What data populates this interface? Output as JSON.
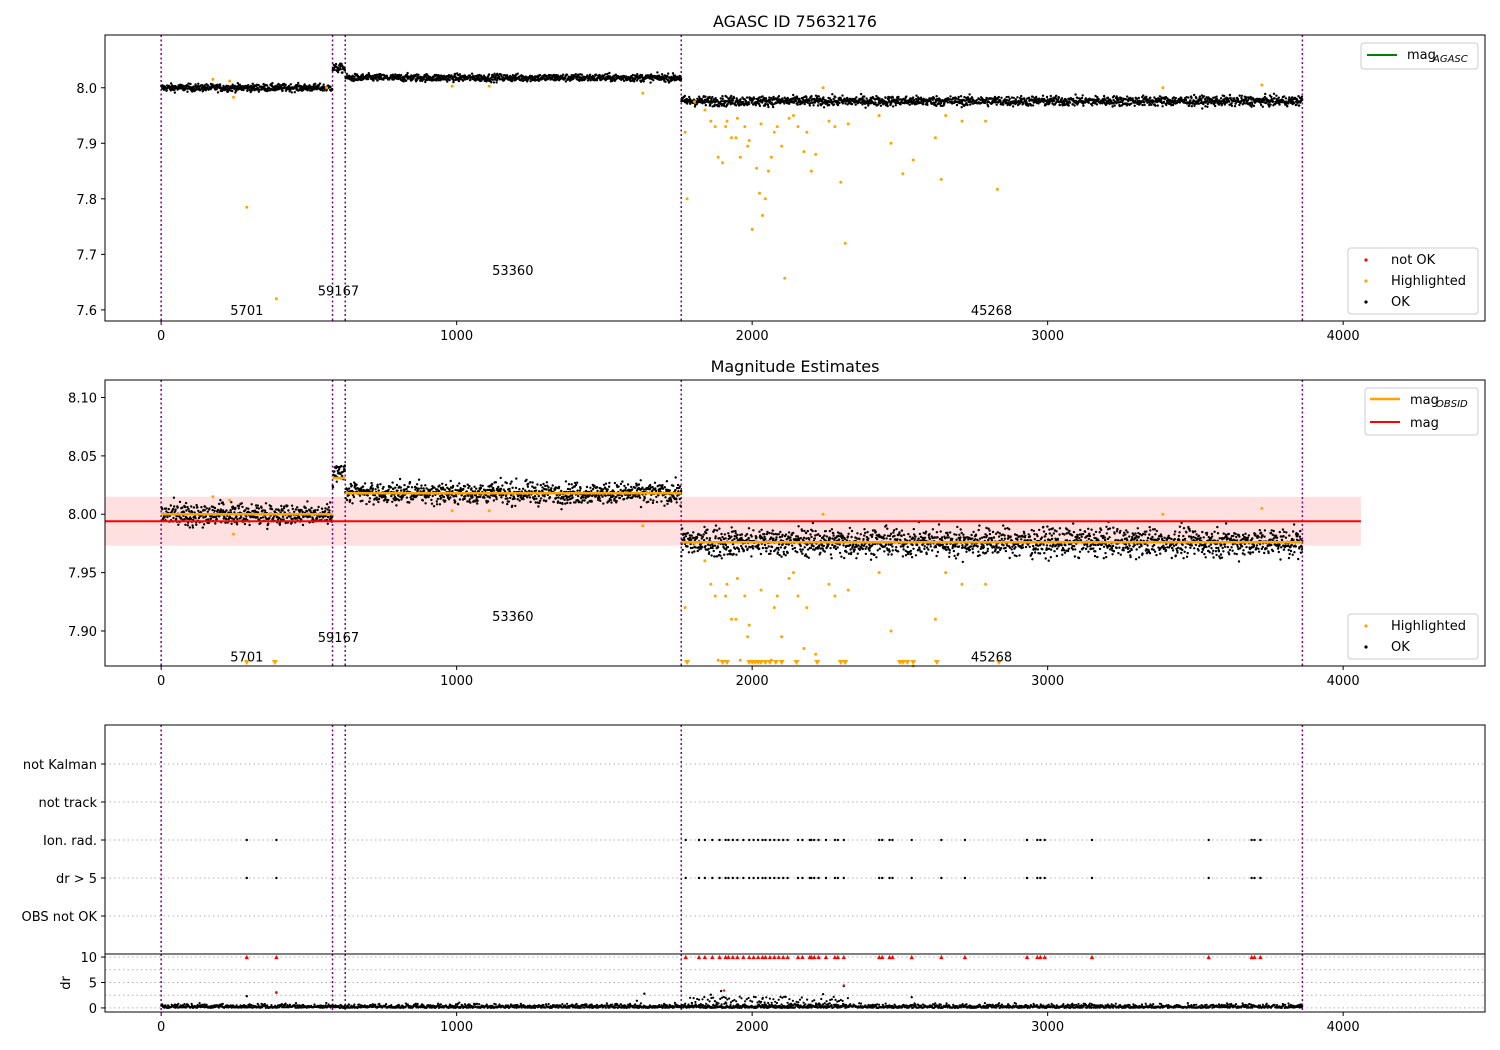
{
  "chart_data": [
    {
      "type": "scatter",
      "title": "AGASC ID 75632176",
      "xlim": [
        -190,
        4480
      ],
      "ylim": [
        7.58,
        8.095
      ],
      "x_ticks": [
        0,
        1000,
        2000,
        3000,
        4000
      ],
      "y_ticks": [
        7.6,
        7.7,
        7.8,
        7.9,
        8.0
      ],
      "y_tick_labels": [
        "7.6",
        "7.7",
        "7.8",
        "7.9",
        "8.0"
      ],
      "obs_boundaries": [
        0,
        580,
        623,
        1760,
        3862
      ],
      "obs_labels": [
        {
          "text": "5701",
          "x": 290,
          "y": 7.6
        },
        {
          "text": "59167",
          "x": 600,
          "y": 7.635
        },
        {
          "text": "53360",
          "x": 1190,
          "y": 7.672
        },
        {
          "text": "45268",
          "x": 2810,
          "y": 7.6
        }
      ],
      "segments": [
        {
          "x0": 0,
          "x1": 580,
          "level": 8.0,
          "scatter": 0.006,
          "gap_above": 0.009
        },
        {
          "x0": 580,
          "x1": 623,
          "level": 8.035,
          "scatter": 0.007,
          "gap_above": 0.009
        },
        {
          "x0": 623,
          "x1": 1760,
          "level": 8.018,
          "scatter": 0.006,
          "gap_above": 0.009
        },
        {
          "x0": 1760,
          "x1": 3862,
          "level": 7.976,
          "scatter": 0.008,
          "gap_above": 0.009
        }
      ],
      "highlighted_points": [
        [
          175,
          8.015
        ],
        [
          232,
          8.012
        ],
        [
          245,
          7.983
        ],
        [
          290,
          7.785
        ],
        [
          390,
          7.62
        ],
        [
          560,
          8.0
        ],
        [
          985,
          8.003
        ],
        [
          1110,
          8.003
        ],
        [
          1630,
          7.99
        ],
        [
          1773,
          7.92
        ],
        [
          1780,
          7.8
        ],
        [
          1805,
          7.975
        ],
        [
          1840,
          7.96
        ],
        [
          1860,
          7.94
        ],
        [
          1875,
          7.93
        ],
        [
          1885,
          7.875
        ],
        [
          1900,
          7.865
        ],
        [
          1910,
          7.93
        ],
        [
          1915,
          7.94
        ],
        [
          1930,
          7.91
        ],
        [
          1945,
          7.91
        ],
        [
          1950,
          7.945
        ],
        [
          1960,
          7.875
        ],
        [
          1975,
          7.93
        ],
        [
          1985,
          7.895
        ],
        [
          1990,
          7.905
        ],
        [
          2000,
          7.745
        ],
        [
          2015,
          7.855
        ],
        [
          2025,
          7.81
        ],
        [
          2030,
          7.935
        ],
        [
          2035,
          7.77
        ],
        [
          2045,
          7.8
        ],
        [
          2055,
          7.85
        ],
        [
          2065,
          7.875
        ],
        [
          2075,
          7.92
        ],
        [
          2085,
          7.93
        ],
        [
          2100,
          7.895
        ],
        [
          2110,
          7.657
        ],
        [
          2125,
          7.945
        ],
        [
          2140,
          7.95
        ],
        [
          2155,
          7.93
        ],
        [
          2175,
          7.885
        ],
        [
          2185,
          7.92
        ],
        [
          2200,
          7.85
        ],
        [
          2215,
          7.88
        ],
        [
          2240,
          8.0
        ],
        [
          2260,
          7.94
        ],
        [
          2280,
          7.93
        ],
        [
          2300,
          7.83
        ],
        [
          2315,
          7.72
        ],
        [
          2325,
          7.935
        ],
        [
          2430,
          7.95
        ],
        [
          2470,
          7.9
        ],
        [
          2510,
          7.845
        ],
        [
          2545,
          7.87
        ],
        [
          2620,
          7.91
        ],
        [
          2640,
          7.835
        ],
        [
          2655,
          7.95
        ],
        [
          2710,
          7.94
        ],
        [
          2790,
          7.94
        ],
        [
          2830,
          7.817
        ],
        [
          3390,
          8.0
        ],
        [
          3725,
          8.005
        ]
      ],
      "legends": [
        {
          "label": "mag",
          "subscript": "AGASC",
          "color": "#008000",
          "marker": "line"
        },
        {
          "label": "not OK",
          "color": "#ff0000",
          "marker": "dot"
        },
        {
          "label": "Highlighted",
          "color": "#ffa500",
          "marker": "dot"
        },
        {
          "label": "OK",
          "color": "#000000",
          "marker": "dot"
        }
      ]
    },
    {
      "type": "scatter",
      "title": "Magnitude Estimates",
      "xlim": [
        -190,
        4480
      ],
      "ylim": [
        7.87,
        8.115
      ],
      "x_ticks": [
        0,
        1000,
        2000,
        3000,
        4000
      ],
      "y_ticks": [
        7.9,
        7.95,
        8.0,
        8.05,
        8.1
      ],
      "y_tick_labels": [
        "7.90",
        "7.95",
        "8.00",
        "8.05",
        "8.10"
      ],
      "mag": 7.994,
      "mag_band": [
        7.973,
        8.015
      ],
      "band_x": [
        -190,
        4060
      ],
      "mag_obsid": [
        {
          "x0": 0,
          "x1": 580,
          "value": 8.0
        },
        {
          "x0": 580,
          "x1": 623,
          "value": 8.031
        },
        {
          "x0": 623,
          "x1": 1760,
          "value": 8.018
        },
        {
          "x0": 1760,
          "x1": 3862,
          "value": 7.976
        }
      ],
      "obs_labels": [
        {
          "text": "5701",
          "x": 290,
          "y": 7.878
        },
        {
          "text": "59167",
          "x": 600,
          "y": 7.895
        },
        {
          "text": "53360",
          "x": 1190,
          "y": 7.913
        },
        {
          "text": "45268",
          "x": 2810,
          "y": 7.878
        }
      ],
      "clipped_low_x": [
        290,
        385,
        1780,
        1900,
        1915,
        1990,
        2000,
        2010,
        2020,
        2030,
        2045,
        2060,
        2080,
        2100,
        2150,
        2220,
        2300,
        2315,
        2500,
        2510,
        2525,
        2545,
        2625,
        2835
      ],
      "legends": [
        {
          "label": "mag",
          "subscript": "OBSID",
          "color": "#ffa500",
          "marker": "line"
        },
        {
          "label": "mag",
          "color": "#ff0000",
          "marker": "line"
        },
        {
          "label": "Highlighted",
          "color": "#ffa500",
          "marker": "dot"
        },
        {
          "label": "OK",
          "color": "#000000",
          "marker": "dot"
        }
      ]
    },
    {
      "type": "scatter",
      "title": "",
      "xlim": [
        -190,
        4480
      ],
      "categories": [
        "not Kalman",
        "not track",
        "Ion. rad.",
        "dr > 5",
        "OBS not OK"
      ],
      "flag_x": [
        290,
        390,
        1775,
        1820,
        1840,
        1865,
        1890,
        1910,
        1920,
        1935,
        1950,
        1970,
        1990,
        2005,
        2020,
        2035,
        2045,
        2060,
        2075,
        2090,
        2105,
        2120,
        2155,
        2170,
        2195,
        2200,
        2210,
        2225,
        2250,
        2280,
        2290,
        2310,
        2430,
        2440,
        2465,
        2475,
        2540,
        2640,
        2720,
        2930,
        2965,
        2975,
        2990,
        3150,
        3545,
        3690,
        3700,
        3720
      ]
    },
    {
      "type": "scatter",
      "title": "",
      "xlim": [
        -190,
        4480
      ],
      "ylim": [
        -0.8,
        10.6
      ],
      "y_ticks": [
        0,
        5,
        10
      ],
      "y_tick_labels": [
        "0",
        "5",
        "10"
      ],
      "ylabel": "dr",
      "x_tick_labels": [
        "0",
        "1000",
        "2000",
        "3000",
        "4000"
      ],
      "dr_outliers": [
        [
          290,
          2.3
        ],
        [
          390,
          3.0
        ],
        [
          1610,
          1.4
        ],
        [
          1635,
          2.8
        ],
        [
          1860,
          2.6
        ],
        [
          1895,
          3.3
        ],
        [
          1910,
          2.0
        ],
        [
          2035,
          1.8
        ],
        [
          2240,
          2.7
        ],
        [
          2310,
          4.3
        ],
        [
          2540,
          2.1
        ]
      ],
      "red_outliers": [
        [
          390,
          3.1
        ],
        [
          1905,
          3.4
        ],
        [
          2310,
          4.4
        ]
      ]
    }
  ]
}
